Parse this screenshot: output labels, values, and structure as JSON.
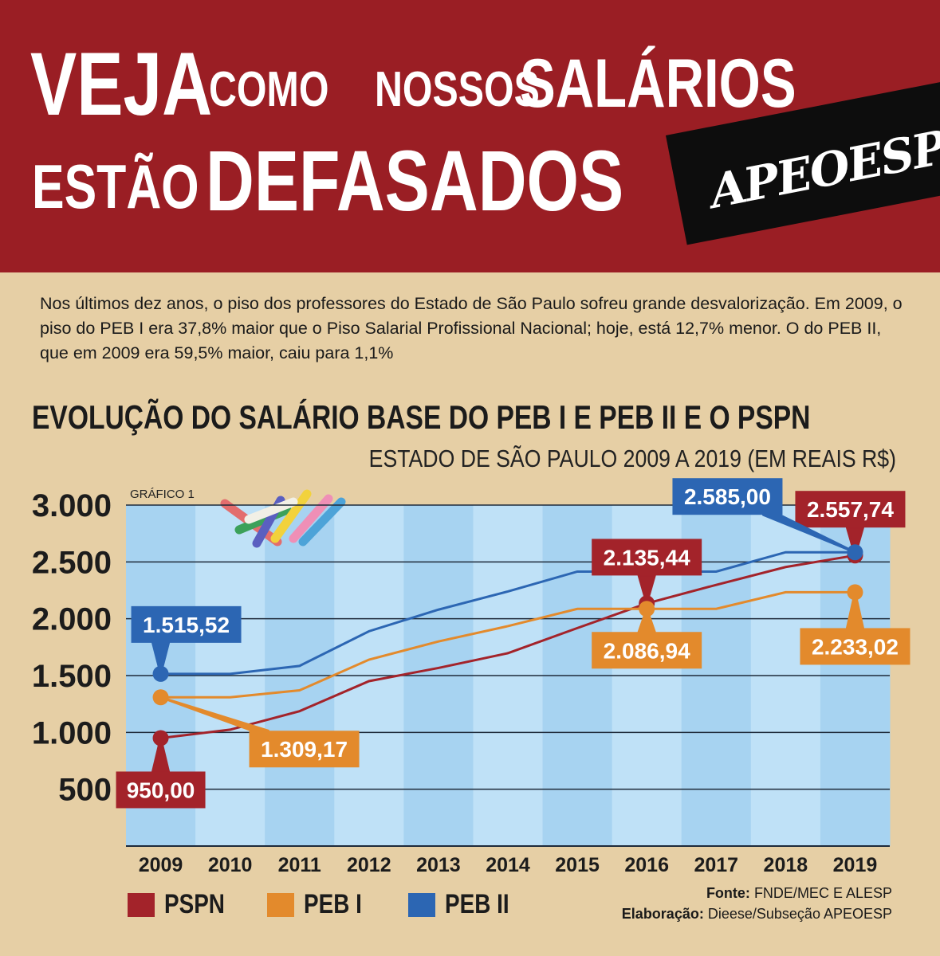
{
  "header": {
    "line1": [
      "VEJA",
      "COMO",
      "NOSSOS",
      "SALÁRIOS"
    ],
    "line2": [
      "ESTÃO",
      "DEFASADOS"
    ],
    "brand": "APEOESP"
  },
  "intro": "Nos últimos dez anos, o piso dos professores do Estado de São Paulo sofreu grande desvalorização. Em 2009, o piso do PEB I era 37,8% maior que o Piso Salarial Profissional Nacional; hoje, está 12,7% menor. O do PEB II, que em 2009 era 59,5% maior, caiu para 1,1%",
  "chart_data": {
    "type": "line",
    "title": "EVOLUÇÃO DO SALÁRIO BASE DO PEB I E PEB II E O PSPN",
    "subtitle": "ESTADO DE SÃO PAULO 2009 A 2019 (EM REAIS R$)",
    "panel_label": "GRÁFICO 1",
    "x": [
      "2009",
      "2010",
      "2011",
      "2012",
      "2013",
      "2014",
      "2015",
      "2016",
      "2017",
      "2018",
      "2019"
    ],
    "y_ticks": [
      "3.000",
      "2.500",
      "2.000",
      "1.500",
      "1.000",
      "500"
    ],
    "y_tick_values": [
      3000,
      2500,
      2000,
      1500,
      1000,
      500
    ],
    "ylim": [
      0,
      3000
    ],
    "grid": true,
    "legend_position": "bottom-left",
    "series": [
      {
        "name": "PSPN",
        "color": "#a3232a",
        "values": [
          950,
          1024,
          1187,
          1451,
          1567,
          1697,
          1918,
          2135,
          2298,
          2455,
          2557
        ],
        "markers": [
          {
            "index": 0,
            "label": "950,00"
          },
          {
            "index": 7,
            "label": "2.135,44"
          },
          {
            "index": 10,
            "label": "2.557,74"
          }
        ]
      },
      {
        "name": "PEB I",
        "color": "#e38a2c",
        "values": [
          1309,
          1309,
          1370,
          1640,
          1800,
          1935,
          2087,
          2087,
          2087,
          2233,
          2233
        ],
        "markers": [
          {
            "index": 0,
            "label": "1.309,17"
          },
          {
            "index": 7,
            "label": "2.086,94"
          },
          {
            "index": 10,
            "label": "2.233,02"
          }
        ]
      },
      {
        "name": "PEB II",
        "color": "#2c66b3",
        "values": [
          1515,
          1515,
          1585,
          1890,
          2080,
          2240,
          2415,
          2415,
          2415,
          2585,
          2585
        ],
        "markers": [
          {
            "index": 0,
            "label": "1.515,52"
          },
          {
            "index": 10,
            "label": "2.585,00"
          }
        ]
      }
    ]
  },
  "legend": [
    {
      "label": "PSPN",
      "color": "#a3232a"
    },
    {
      "label": "PEB I",
      "color": "#e38a2c"
    },
    {
      "label": "PEB II",
      "color": "#2c66b3"
    }
  ],
  "credits": {
    "fonte_label": "Fonte:",
    "fonte": "FNDE/MEC E ALESP",
    "elab_label": "Elaboração:",
    "elab": "Dieese/Subseção APEOESP"
  },
  "colors": {
    "header_bg": "#9a1e24",
    "page_bg": "#e6cfa5",
    "chart_stripe_light": "#bfe1f7",
    "chart_stripe_dark": "#a7d3f1"
  }
}
